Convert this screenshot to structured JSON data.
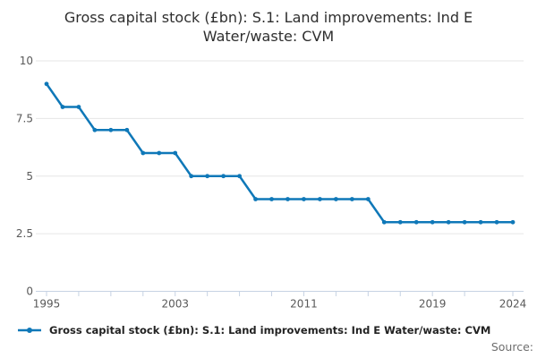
{
  "header": {
    "title": "Gross capital stock (£bn): S.1: Land improvements: Ind E Water/waste: CVM"
  },
  "legend": {
    "label": "Gross capital stock (£bn): S.1: Land improvements: Ind E Water/waste: CVM",
    "marker": "line-dot-icon"
  },
  "source_label": "Source:",
  "colors": {
    "line": "#0f78b8",
    "grid": "#e6e6e6",
    "axis": "#c6d2e3",
    "tick_label": "#595959",
    "background": "#ffffff"
  },
  "chart_data": {
    "type": "line",
    "title": "Gross capital stock (£bn): S.1: Land improvements: Ind E Water/waste: CVM",
    "x": [
      1995,
      1996,
      1997,
      1998,
      1999,
      2000,
      2001,
      2002,
      2003,
      2004,
      2005,
      2006,
      2007,
      2008,
      2009,
      2010,
      2011,
      2012,
      2013,
      2014,
      2015,
      2016,
      2017,
      2018,
      2019,
      2020,
      2021,
      2022,
      2023,
      2024
    ],
    "series": [
      {
        "name": "Gross capital stock (£bn): S.1: Land improvements: Ind E Water/waste: CVM",
        "values": [
          9,
          8,
          8,
          7,
          7,
          7,
          6,
          6,
          6,
          5,
          5,
          5,
          5,
          4,
          4,
          4,
          4,
          4,
          4,
          4,
          4,
          3,
          3,
          3,
          3,
          3,
          3,
          3,
          3,
          3
        ]
      }
    ],
    "xlabel": "",
    "ylabel": "",
    "ylim": [
      0,
      10
    ],
    "yticks": [
      0,
      2.5,
      5,
      7.5,
      10
    ],
    "xticks_minor": [
      1995,
      1997,
      1999,
      2001,
      2003,
      2005,
      2007,
      2009,
      2011,
      2013,
      2015,
      2017,
      2019,
      2021,
      2024
    ],
    "xtick_labels": [
      1995,
      2003,
      2011,
      2019,
      2024
    ],
    "grid": "horizontal",
    "legend_position": "bottom-left",
    "marker": "circle"
  }
}
